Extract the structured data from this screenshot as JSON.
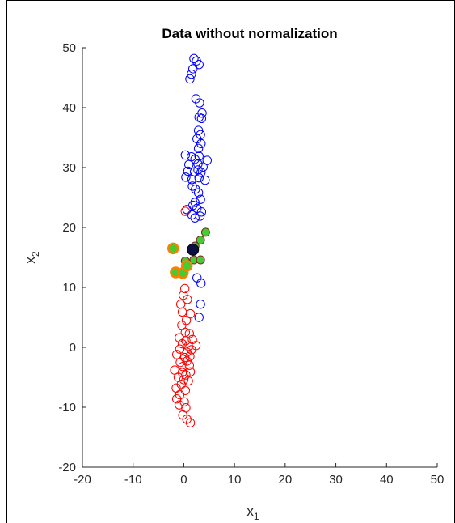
{
  "chart_data": {
    "type": "scatter",
    "title": "Data without normalization",
    "xlabel": "x",
    "xlabel_sub": "1",
    "ylabel": "x",
    "ylabel_sub": "2",
    "xlim": [
      -20,
      50
    ],
    "ylim": [
      -20,
      50
    ],
    "xticks": [
      "-20",
      "-10",
      "0",
      "10",
      "20",
      "30",
      "40",
      "50"
    ],
    "yticks": [
      "-20",
      "-10",
      "0",
      "10",
      "20",
      "30",
      "40",
      "50"
    ],
    "grid": false,
    "series": [
      {
        "color": "#0000ff",
        "marker": "open-circle",
        "points": [
          [
            2.0,
            48.2
          ],
          [
            2.5,
            47.8
          ],
          [
            3.0,
            47.2
          ],
          [
            1.8,
            46.5
          ],
          [
            1.5,
            45.6
          ],
          [
            1.2,
            44.8
          ],
          [
            2.4,
            41.5
          ],
          [
            3.1,
            40.8
          ],
          [
            3.6,
            39.1
          ],
          [
            3.0,
            38.4
          ],
          [
            3.5,
            38.2
          ],
          [
            2.9,
            36.2
          ],
          [
            3.3,
            35.5
          ],
          [
            2.6,
            34.8
          ],
          [
            3.4,
            34.0
          ],
          [
            2.9,
            33.2
          ],
          [
            0.3,
            32.1
          ],
          [
            1.5,
            31.8
          ],
          [
            2.2,
            31.4
          ],
          [
            3.0,
            31.9
          ],
          [
            4.6,
            31.2
          ],
          [
            1.0,
            30.5
          ],
          [
            2.8,
            30.6
          ],
          [
            3.8,
            30.1
          ],
          [
            0.8,
            29.4
          ],
          [
            2.1,
            29.3
          ],
          [
            2.8,
            29.6
          ],
          [
            3.4,
            29.2
          ],
          [
            0.4,
            28.4
          ],
          [
            1.6,
            28.0
          ],
          [
            3.0,
            28.3
          ],
          [
            4.2,
            27.9
          ],
          [
            1.7,
            26.9
          ],
          [
            2.3,
            26.4
          ],
          [
            2.9,
            25.8
          ],
          [
            3.3,
            24.7
          ],
          [
            2.2,
            24.2
          ],
          [
            1.8,
            23.7
          ],
          [
            0.6,
            23.0
          ],
          [
            2.6,
            23.2
          ],
          [
            3.5,
            22.6
          ],
          [
            1.6,
            22.1
          ],
          [
            2.2,
            21.6
          ],
          [
            3.2,
            21.9
          ],
          [
            2.6,
            11.6
          ],
          [
            3.4,
            10.7
          ],
          [
            3.3,
            7.2
          ],
          [
            3.0,
            5.0
          ]
        ]
      },
      {
        "color": "#ff0000",
        "marker": "open-circle",
        "points": [
          [
            0.3,
            22.7
          ],
          [
            0.2,
            9.8
          ],
          [
            -0.1,
            8.7
          ],
          [
            0.7,
            8.0
          ],
          [
            -0.6,
            7.2
          ],
          [
            -0.3,
            5.9
          ],
          [
            1.3,
            5.6
          ],
          [
            0.5,
            4.5
          ],
          [
            -0.4,
            3.7
          ],
          [
            0.3,
            2.5
          ],
          [
            1.1,
            2.3
          ],
          [
            -0.9,
            1.6
          ],
          [
            0.4,
            1.1
          ],
          [
            1.7,
            1.3
          ],
          [
            -0.3,
            0.6
          ],
          [
            0.9,
            0.2
          ],
          [
            2.4,
            0.3
          ],
          [
            -0.8,
            -0.3
          ],
          [
            0.6,
            -0.8
          ],
          [
            1.5,
            -0.4
          ],
          [
            -1.4,
            -1.2
          ],
          [
            0.2,
            -1.7
          ],
          [
            1.2,
            -1.5
          ],
          [
            -0.7,
            -2.5
          ],
          [
            0.6,
            -2.3
          ],
          [
            -0.2,
            -3.2
          ],
          [
            1.1,
            -3.0
          ],
          [
            -1.8,
            -3.8
          ],
          [
            -0.3,
            -4.2
          ],
          [
            0.4,
            -4.6
          ],
          [
            1.3,
            -4.1
          ],
          [
            -1.1,
            -5.0
          ],
          [
            0.0,
            -5.4
          ],
          [
            0.9,
            -5.6
          ],
          [
            -0.5,
            -6.2
          ],
          [
            -1.5,
            -6.8
          ],
          [
            0.3,
            -7.2
          ],
          [
            -0.8,
            -7.9
          ],
          [
            -1.4,
            -8.6
          ],
          [
            0.1,
            -9.1
          ],
          [
            -0.9,
            -9.6
          ],
          [
            0.4,
            -10.1
          ],
          [
            -0.2,
            -11.3
          ],
          [
            0.6,
            -12.0
          ],
          [
            1.3,
            -12.6
          ]
        ]
      },
      {
        "color": "#00aa00",
        "marker": "filled-circle",
        "points": [
          [
            4.3,
            19.2
          ],
          [
            3.3,
            17.9
          ],
          [
            2.2,
            16.9
          ],
          [
            0.3,
            14.4
          ],
          [
            2.0,
            14.6
          ],
          [
            3.3,
            14.6
          ]
        ]
      },
      {
        "color": "#ff7f00",
        "marker": "highlight-ring",
        "points": [
          [
            -2.1,
            16.5
          ],
          [
            -1.6,
            12.5
          ],
          [
            -0.2,
            12.4
          ],
          [
            0.6,
            13.6
          ]
        ]
      },
      {
        "color": "#0b1040",
        "marker": "filled-circle-large",
        "points": [
          [
            1.8,
            16.3
          ]
        ]
      }
    ]
  }
}
